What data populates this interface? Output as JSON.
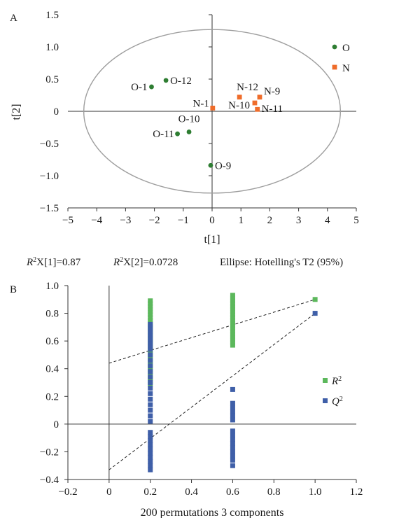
{
  "chart_data": [
    {
      "panel": "A",
      "type": "scatter",
      "xlabel": "t[1]",
      "ylabel": "t[2]",
      "xlim": [
        -5,
        5
      ],
      "ylim": [
        -1.5,
        1.5
      ],
      "x_ticks": [
        "−5",
        "−4",
        "−3",
        "−2",
        "−1",
        "0",
        "1",
        "2",
        "3",
        "4",
        "5"
      ],
      "y_ticks": [
        "1.5",
        "1.0",
        "0.5",
        "0",
        "−0.5",
        "−1.0",
        "−1.5"
      ],
      "grid": false,
      "legend_position": "top-right",
      "series": [
        {
          "name": "O",
          "color": "#2e7d32",
          "marker": "circle",
          "points": [
            {
              "label": "O-1",
              "x": -2.1,
              "y": 0.38
            },
            {
              "label": "O-12",
              "x": -1.6,
              "y": 0.48
            },
            {
              "label": "O-10",
              "x": -0.8,
              "y": -0.32
            },
            {
              "label": "O-11",
              "x": -1.2,
              "y": -0.35
            },
            {
              "label": "O-9",
              "x": -0.05,
              "y": -0.84
            }
          ]
        },
        {
          "name": "N",
          "color": "#ef6c2a",
          "marker": "square",
          "points": [
            {
              "label": "N-1",
              "x": 0.02,
              "y": 0.05
            },
            {
              "label": "N-12",
              "x": 0.95,
              "y": 0.22
            },
            {
              "label": "N-9",
              "x": 1.65,
              "y": 0.22
            },
            {
              "label": "N-10",
              "x": 1.48,
              "y": 0.13
            },
            {
              "label": "N-11",
              "x": 1.57,
              "y": 0.03
            }
          ]
        }
      ],
      "ellipse": {
        "cx": 0,
        "cy": 0,
        "rx": 4.45,
        "ry": 1.27,
        "color": "#9e9e9e"
      },
      "caption": {
        "r2x1_sym": "R",
        "r2x1_sup": "2",
        "r2x1_rest": "X[1]=0.87",
        "r2x2_sym": "R",
        "r2x2_sup": "2",
        "r2x2_rest": "X[2]=0.0728",
        "ellipse_text": "Ellipse: Hotelling's T2 (95%)"
      }
    },
    {
      "panel": "B",
      "type": "scatter",
      "xlabel": "200 permutations 3 components",
      "ylabel": "",
      "xlim": [
        -0.2,
        1.2
      ],
      "ylim": [
        -0.4,
        1.0
      ],
      "x_ticks": [
        "−0.2",
        "0",
        "0.2",
        "0.4",
        "0.6",
        "0.8",
        "1.0",
        "1.2"
      ],
      "y_ticks": [
        "1.0",
        "0.8",
        "0.6",
        "0.4",
        "0.2",
        "0",
        "−0.2",
        "−0.4"
      ],
      "grid": false,
      "legend_position": "right",
      "series": [
        {
          "name_sym": "R",
          "name_sup": "2",
          "color": "#5cb85c",
          "marker": "square",
          "points": [
            {
              "x": 0.2,
              "y": 0.89
            },
            {
              "x": 0.2,
              "y": 0.87
            },
            {
              "x": 0.2,
              "y": 0.85
            },
            {
              "x": 0.2,
              "y": 0.83
            },
            {
              "x": 0.2,
              "y": 0.81
            },
            {
              "x": 0.2,
              "y": 0.79
            },
            {
              "x": 0.2,
              "y": 0.77
            },
            {
              "x": 0.2,
              "y": 0.75
            },
            {
              "x": 0.2,
              "y": 0.73
            },
            {
              "x": 0.2,
              "y": 0.71
            },
            {
              "x": 0.2,
              "y": 0.69
            },
            {
              "x": 0.2,
              "y": 0.67
            },
            {
              "x": 0.2,
              "y": 0.65
            },
            {
              "x": 0.2,
              "y": 0.63
            },
            {
              "x": 0.2,
              "y": 0.61
            },
            {
              "x": 0.2,
              "y": 0.59
            },
            {
              "x": 0.2,
              "y": 0.57
            },
            {
              "x": 0.2,
              "y": 0.55
            },
            {
              "x": 0.2,
              "y": 0.53
            },
            {
              "x": 0.2,
              "y": 0.51
            },
            {
              "x": 0.2,
              "y": 0.49
            },
            {
              "x": 0.2,
              "y": 0.47
            },
            {
              "x": 0.2,
              "y": 0.45
            },
            {
              "x": 0.2,
              "y": 0.43
            },
            {
              "x": 0.2,
              "y": 0.41
            },
            {
              "x": 0.2,
              "y": 0.39
            },
            {
              "x": 0.2,
              "y": 0.37
            },
            {
              "x": 0.2,
              "y": 0.35
            },
            {
              "x": 0.2,
              "y": 0.33
            },
            {
              "x": 0.2,
              "y": 0.31
            },
            {
              "x": 0.2,
              "y": 0.29
            },
            {
              "x": 0.6,
              "y": 0.93
            },
            {
              "x": 0.6,
              "y": 0.91
            },
            {
              "x": 0.6,
              "y": 0.89
            },
            {
              "x": 0.6,
              "y": 0.87
            },
            {
              "x": 0.6,
              "y": 0.85
            },
            {
              "x": 0.6,
              "y": 0.83
            },
            {
              "x": 0.6,
              "y": 0.81
            },
            {
              "x": 0.6,
              "y": 0.79
            },
            {
              "x": 0.6,
              "y": 0.77
            },
            {
              "x": 0.6,
              "y": 0.75
            },
            {
              "x": 0.6,
              "y": 0.73
            },
            {
              "x": 0.6,
              "y": 0.71
            },
            {
              "x": 0.6,
              "y": 0.69
            },
            {
              "x": 0.6,
              "y": 0.67
            },
            {
              "x": 0.6,
              "y": 0.65
            },
            {
              "x": 0.6,
              "y": 0.63
            },
            {
              "x": 0.6,
              "y": 0.61
            },
            {
              "x": 0.6,
              "y": 0.59
            },
            {
              "x": 0.6,
              "y": 0.57
            },
            {
              "x": 1.0,
              "y": 0.9
            }
          ]
        },
        {
          "name_sym": "Q",
          "name_sup": "2",
          "color": "#3f5fa8",
          "marker": "square",
          "points": [
            {
              "x": 0.2,
              "y": 0.72
            },
            {
              "x": 0.2,
              "y": 0.7
            },
            {
              "x": 0.2,
              "y": 0.68
            },
            {
              "x": 0.2,
              "y": 0.66
            },
            {
              "x": 0.2,
              "y": 0.64
            },
            {
              "x": 0.2,
              "y": 0.62
            },
            {
              "x": 0.2,
              "y": 0.6
            },
            {
              "x": 0.2,
              "y": 0.58
            },
            {
              "x": 0.2,
              "y": 0.56
            },
            {
              "x": 0.2,
              "y": 0.54
            },
            {
              "x": 0.2,
              "y": 0.5
            },
            {
              "x": 0.2,
              "y": 0.46
            },
            {
              "x": 0.2,
              "y": 0.42
            },
            {
              "x": 0.2,
              "y": 0.38
            },
            {
              "x": 0.2,
              "y": 0.34
            },
            {
              "x": 0.2,
              "y": 0.3
            },
            {
              "x": 0.2,
              "y": 0.26
            },
            {
              "x": 0.2,
              "y": 0.22
            },
            {
              "x": 0.2,
              "y": 0.18
            },
            {
              "x": 0.2,
              "y": 0.14
            },
            {
              "x": 0.2,
              "y": 0.1
            },
            {
              "x": 0.2,
              "y": 0.06
            },
            {
              "x": 0.2,
              "y": 0.02
            },
            {
              "x": 0.2,
              "y": -0.06
            },
            {
              "x": 0.2,
              "y": -0.09
            },
            {
              "x": 0.2,
              "y": -0.12
            },
            {
              "x": 0.2,
              "y": -0.15
            },
            {
              "x": 0.2,
              "y": -0.18
            },
            {
              "x": 0.2,
              "y": -0.21
            },
            {
              "x": 0.2,
              "y": -0.24
            },
            {
              "x": 0.2,
              "y": -0.27
            },
            {
              "x": 0.2,
              "y": -0.3
            },
            {
              "x": 0.2,
              "y": -0.33
            },
            {
              "x": 0.6,
              "y": 0.25
            },
            {
              "x": 0.6,
              "y": 0.15
            },
            {
              "x": 0.6,
              "y": 0.12
            },
            {
              "x": 0.6,
              "y": 0.09
            },
            {
              "x": 0.6,
              "y": 0.06
            },
            {
              "x": 0.6,
              "y": 0.03
            },
            {
              "x": 0.6,
              "y": -0.05
            },
            {
              "x": 0.6,
              "y": -0.08
            },
            {
              "x": 0.6,
              "y": -0.11
            },
            {
              "x": 0.6,
              "y": -0.14
            },
            {
              "x": 0.6,
              "y": -0.17
            },
            {
              "x": 0.6,
              "y": -0.2
            },
            {
              "x": 0.6,
              "y": -0.23
            },
            {
              "x": 0.6,
              "y": -0.26
            },
            {
              "x": 0.6,
              "y": -0.3
            },
            {
              "x": 1.0,
              "y": 0.8
            }
          ]
        }
      ],
      "regression_lines": [
        {
          "series": "R2",
          "x": [
            0,
            1.0
          ],
          "y": [
            0.44,
            0.9
          ],
          "style": "dashed"
        },
        {
          "series": "Q2",
          "x": [
            0,
            1.0
          ],
          "y": [
            -0.33,
            0.8
          ],
          "style": "dashed"
        }
      ]
    }
  ]
}
